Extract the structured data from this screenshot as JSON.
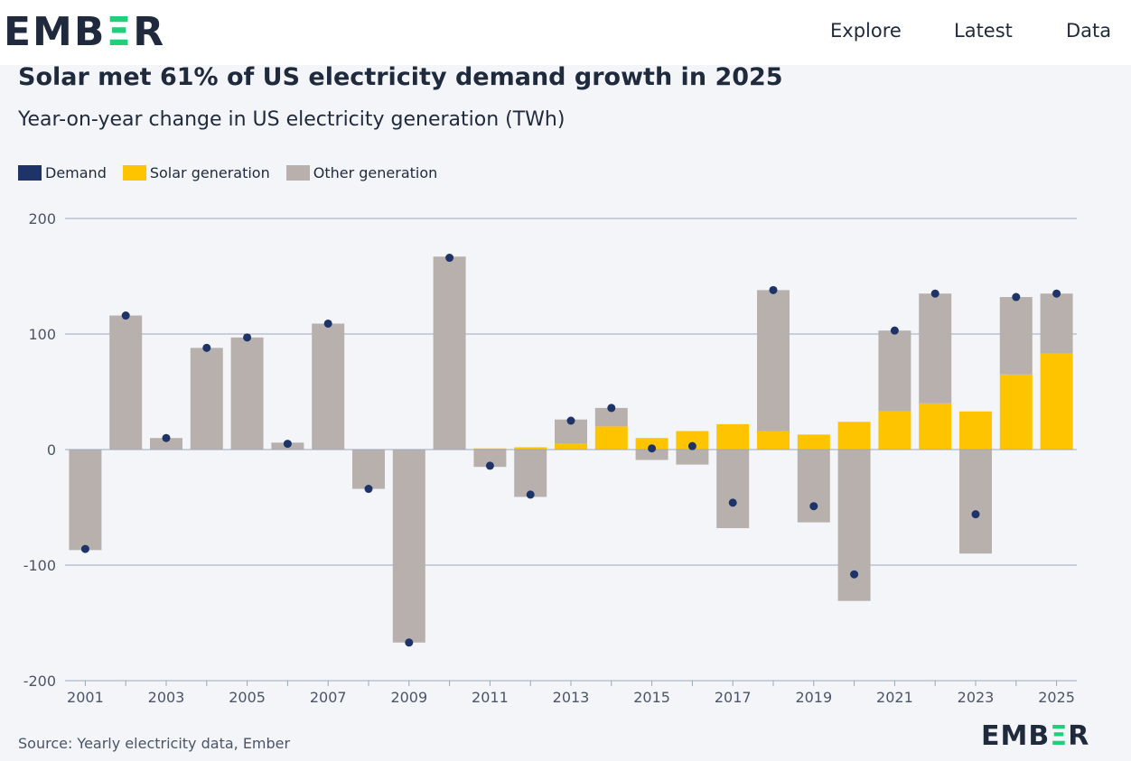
{
  "header": {
    "logo_text": "EMBER",
    "nav": [
      "Explore",
      "Latest",
      "Data"
    ]
  },
  "colors": {
    "demand": "#1e3367",
    "solar": "#ffc400",
    "other": "#b7b0ad",
    "grid": "#9ca6bb"
  },
  "chart_data": {
    "type": "bar",
    "title": "Solar met 61% of US electricity demand growth in 2025",
    "subtitle": "Year-on-year change in US electricity generation (TWh)",
    "legend": [
      "Demand",
      "Solar generation",
      "Other generation"
    ],
    "ylim": [
      -200,
      200
    ],
    "yticks": [
      200,
      100,
      0,
      -100,
      -200
    ],
    "xtick_labels": [
      "2001",
      "2003",
      "2005",
      "2007",
      "2009",
      "2011",
      "2013",
      "2015",
      "2017",
      "2019",
      "2021",
      "2023",
      "2025"
    ],
    "categories": [
      "2001",
      "2002",
      "2003",
      "2004",
      "2005",
      "2006",
      "2007",
      "2008",
      "2009",
      "2010",
      "2011",
      "2012",
      "2013",
      "2014",
      "2015",
      "2016",
      "2017",
      "2018",
      "2019",
      "2020",
      "2021",
      "2022",
      "2023",
      "2024",
      "2025"
    ],
    "series": [
      {
        "name": "Solar generation",
        "values": [
          0,
          0,
          0,
          0,
          0,
          0,
          0,
          0,
          0,
          0,
          1,
          2,
          5,
          20,
          10,
          16,
          22,
          16,
          13,
          24,
          33,
          40,
          33,
          65,
          83
        ]
      },
      {
        "name": "Other generation",
        "values": [
          -87,
          116,
          10,
          88,
          97,
          6,
          109,
          -34,
          -167,
          167,
          -15,
          -41,
          21,
          16,
          -9,
          -13,
          -68,
          122,
          -63,
          -131,
          70,
          95,
          -90,
          67,
          52
        ]
      },
      {
        "name": "Demand",
        "values": [
          -86,
          116,
          10,
          88,
          97,
          5,
          109,
          -34,
          -167,
          166,
          -14,
          -39,
          25,
          36,
          1,
          3,
          -46,
          138,
          -49,
          -108,
          103,
          135,
          -56,
          132,
          135
        ]
      }
    ]
  },
  "source": "Source: Yearly electricity data, Ember",
  "footer": {
    "logo_text": "EMBER"
  }
}
